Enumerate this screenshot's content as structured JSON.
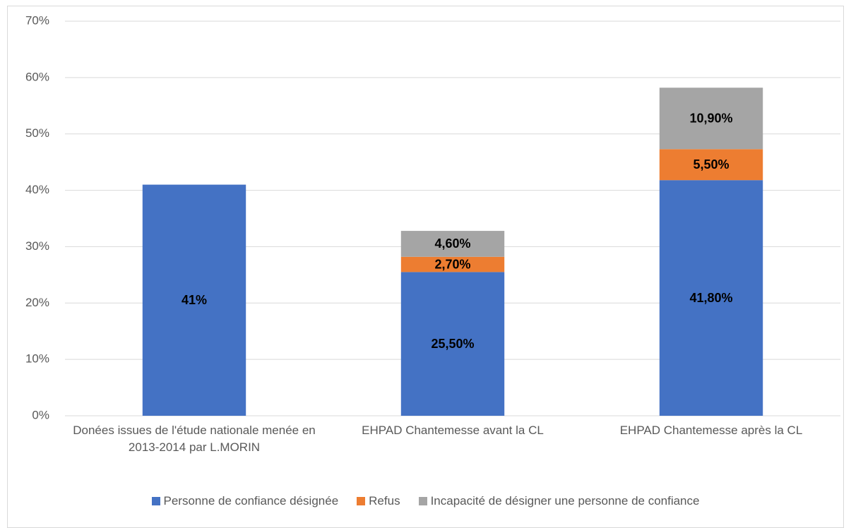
{
  "chart_data": {
    "type": "stacked_bar",
    "categories": [
      "Donées issues de l'étude nationale menée en 2013-2014 par L.MORIN",
      "EHPAD Chantemesse avant la CL",
      "EHPAD Chantemesse après la CL"
    ],
    "series": [
      {
        "name": "Personne de confiance désignée",
        "color": "#4472c4",
        "values": [
          41,
          25.5,
          41.8
        ],
        "value_labels": [
          "41%",
          "25,50%",
          "41,80%"
        ]
      },
      {
        "name": "Refus",
        "color": "#ed7d31",
        "values": [
          null,
          2.7,
          5.5
        ],
        "value_labels": [
          null,
          "2,70%",
          "5,50%"
        ]
      },
      {
        "name": "Incapacité de désigner une personne de confiance",
        "color": "#a5a5a5",
        "values": [
          null,
          4.6,
          10.9
        ],
        "value_labels": [
          null,
          "4,60%",
          "10,90%"
        ]
      }
    ],
    "ylim": [
      0,
      70
    ],
    "yticks": [
      {
        "value": 0,
        "label": "0%"
      },
      {
        "value": 10,
        "label": "10%"
      },
      {
        "value": 20,
        "label": "20%"
      },
      {
        "value": 30,
        "label": "30%"
      },
      {
        "value": 40,
        "label": "40%"
      },
      {
        "value": 50,
        "label": "50%"
      },
      {
        "value": 60,
        "label": "60%"
      },
      {
        "value": 70,
        "label": "70%"
      }
    ],
    "grid": true,
    "legend": "bottom"
  }
}
